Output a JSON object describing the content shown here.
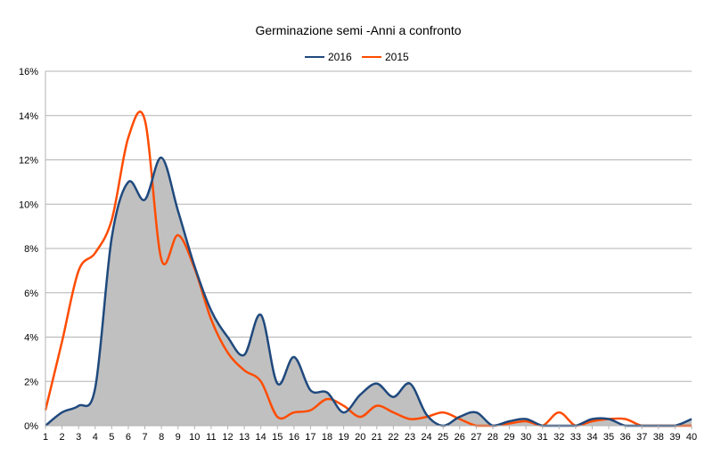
{
  "chart_data": {
    "type": "line",
    "title": "Germinazione semi -Anni a confronto",
    "xlabel": "",
    "ylabel": "",
    "x": [
      1,
      2,
      3,
      4,
      5,
      6,
      7,
      8,
      9,
      10,
      11,
      12,
      13,
      14,
      15,
      16,
      17,
      18,
      19,
      20,
      21,
      22,
      23,
      24,
      25,
      26,
      27,
      28,
      29,
      30,
      31,
      32,
      33,
      34,
      35,
      36,
      37,
      38,
      39,
      40
    ],
    "xlim": [
      1,
      40
    ],
    "ylim": [
      0,
      0.16
    ],
    "y_ticks": [
      "0%",
      "2%",
      "4%",
      "6%",
      "8%",
      "10%",
      "12%",
      "14%",
      "16%"
    ],
    "x_ticks": [
      "1",
      "2",
      "3",
      "4",
      "5",
      "6",
      "7",
      "8",
      "9",
      "10",
      "11",
      "12",
      "13",
      "14",
      "15",
      "16",
      "17",
      "18",
      "19",
      "20",
      "21",
      "22",
      "23",
      "24",
      "25",
      "26",
      "27",
      "28",
      "29",
      "30",
      "31",
      "32",
      "33",
      "34",
      "35",
      "36",
      "37",
      "38",
      "39",
      "40"
    ],
    "grid": "horizontal",
    "legend_position": "top-center",
    "series": [
      {
        "name": "2016",
        "color": "#1f497d",
        "values": [
          0.0,
          0.006,
          0.009,
          0.017,
          0.085,
          0.11,
          0.102,
          0.121,
          0.097,
          0.072,
          0.052,
          0.04,
          0.032,
          0.05,
          0.019,
          0.031,
          0.016,
          0.015,
          0.006,
          0.014,
          0.019,
          0.013,
          0.019,
          0.005,
          0.0,
          0.004,
          0.006,
          0.0,
          0.002,
          0.003,
          0.0,
          0.0,
          0.0,
          0.003,
          0.003,
          0.0,
          0.0,
          0.0,
          0.0,
          0.003
        ]
      },
      {
        "name": "2015",
        "color": "#ff4c00",
        "values": [
          0.007,
          0.038,
          0.07,
          0.078,
          0.093,
          0.13,
          0.138,
          0.075,
          0.086,
          0.071,
          0.048,
          0.033,
          0.025,
          0.02,
          0.004,
          0.006,
          0.007,
          0.012,
          0.009,
          0.004,
          0.009,
          0.006,
          0.003,
          0.004,
          0.006,
          0.003,
          0.0,
          0.0,
          0.001,
          0.002,
          0.0,
          0.006,
          0.0,
          0.002,
          0.003,
          0.003,
          0.0,
          0.0,
          0.0,
          0.0
        ]
      }
    ],
    "fill_series": "2016",
    "fill_color": "#c0c0c0"
  }
}
